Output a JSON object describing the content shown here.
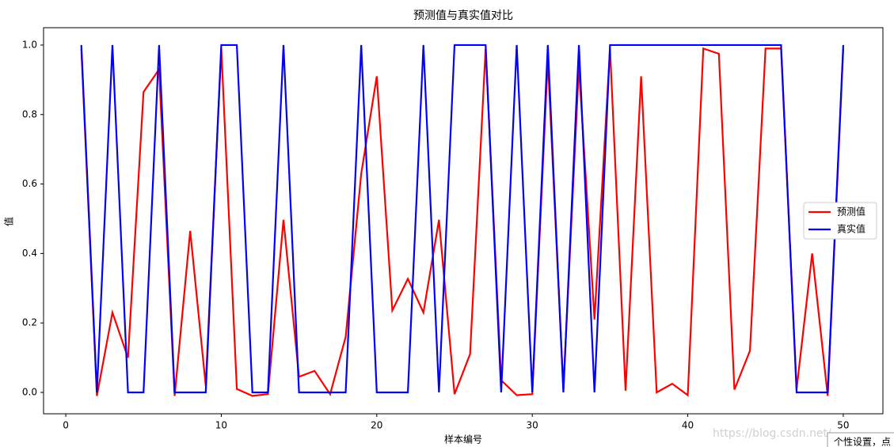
{
  "chart_data": {
    "type": "line",
    "title": "预测值与真实值对比",
    "x_label": "样本编号",
    "y_label": "值",
    "x": [
      1,
      2,
      3,
      4,
      5,
      6,
      7,
      8,
      9,
      10,
      11,
      12,
      13,
      14,
      15,
      16,
      17,
      18,
      19,
      20,
      21,
      22,
      23,
      24,
      25,
      26,
      27,
      28,
      29,
      30,
      31,
      32,
      33,
      34,
      35,
      36,
      37,
      38,
      39,
      40,
      41,
      42,
      43,
      44,
      45,
      46,
      47,
      48,
      49,
      50
    ],
    "series": [
      {
        "name": "预测值",
        "color": "#ff0000",
        "values": [
          0.99,
          -0.01,
          0.23,
          0.1,
          0.865,
          0.93,
          -0.01,
          0.465,
          0.02,
          0.99,
          0.01,
          -0.01,
          -0.005,
          0.497,
          0.045,
          0.062,
          -0.005,
          0.16,
          0.63,
          0.91,
          0.236,
          0.327,
          0.23,
          0.497,
          -0.005,
          0.11,
          0.99,
          0.035,
          -0.008,
          -0.005,
          0.96,
          0.01,
          0.94,
          0.21,
          0.99,
          0.005,
          0.91,
          0.0,
          0.025,
          -0.008,
          0.99,
          0.975,
          0.008,
          0.12,
          0.99,
          0.99,
          0.01,
          0.4,
          -0.01,
          0.99
        ]
      },
      {
        "name": "真实值",
        "color": "#0000ff",
        "values": [
          1,
          0,
          1,
          0,
          0,
          1,
          0,
          0,
          0,
          1,
          1,
          0,
          0,
          1,
          0,
          0,
          0,
          0,
          1,
          0,
          0,
          0,
          1,
          0,
          1,
          1,
          1,
          0,
          1,
          0,
          1,
          0,
          1,
          0,
          1,
          1,
          1,
          1,
          1,
          1,
          1,
          1,
          1,
          1,
          1,
          1,
          0,
          0,
          0,
          1
        ]
      }
    ],
    "xlim": [
      -1.43,
      52.55
    ],
    "ylim": [
      -0.0615,
      1.05
    ],
    "xticks": [
      0,
      10,
      20,
      30,
      40,
      50
    ],
    "yticks": [
      {
        "value": 0,
        "label": "0.0"
      },
      {
        "value": 0.2,
        "label": "0.2"
      },
      {
        "value": 0.4,
        "label": "0.4"
      },
      {
        "value": 0.6,
        "label": "0.6"
      },
      {
        "value": 0.8,
        "label": "0.8"
      },
      {
        "value": 1,
        "label": "1.0"
      }
    ],
    "legend": "center right",
    "grid": false
  },
  "watermark": "https://blog.csdn.net/",
  "button": "个性设置，点"
}
